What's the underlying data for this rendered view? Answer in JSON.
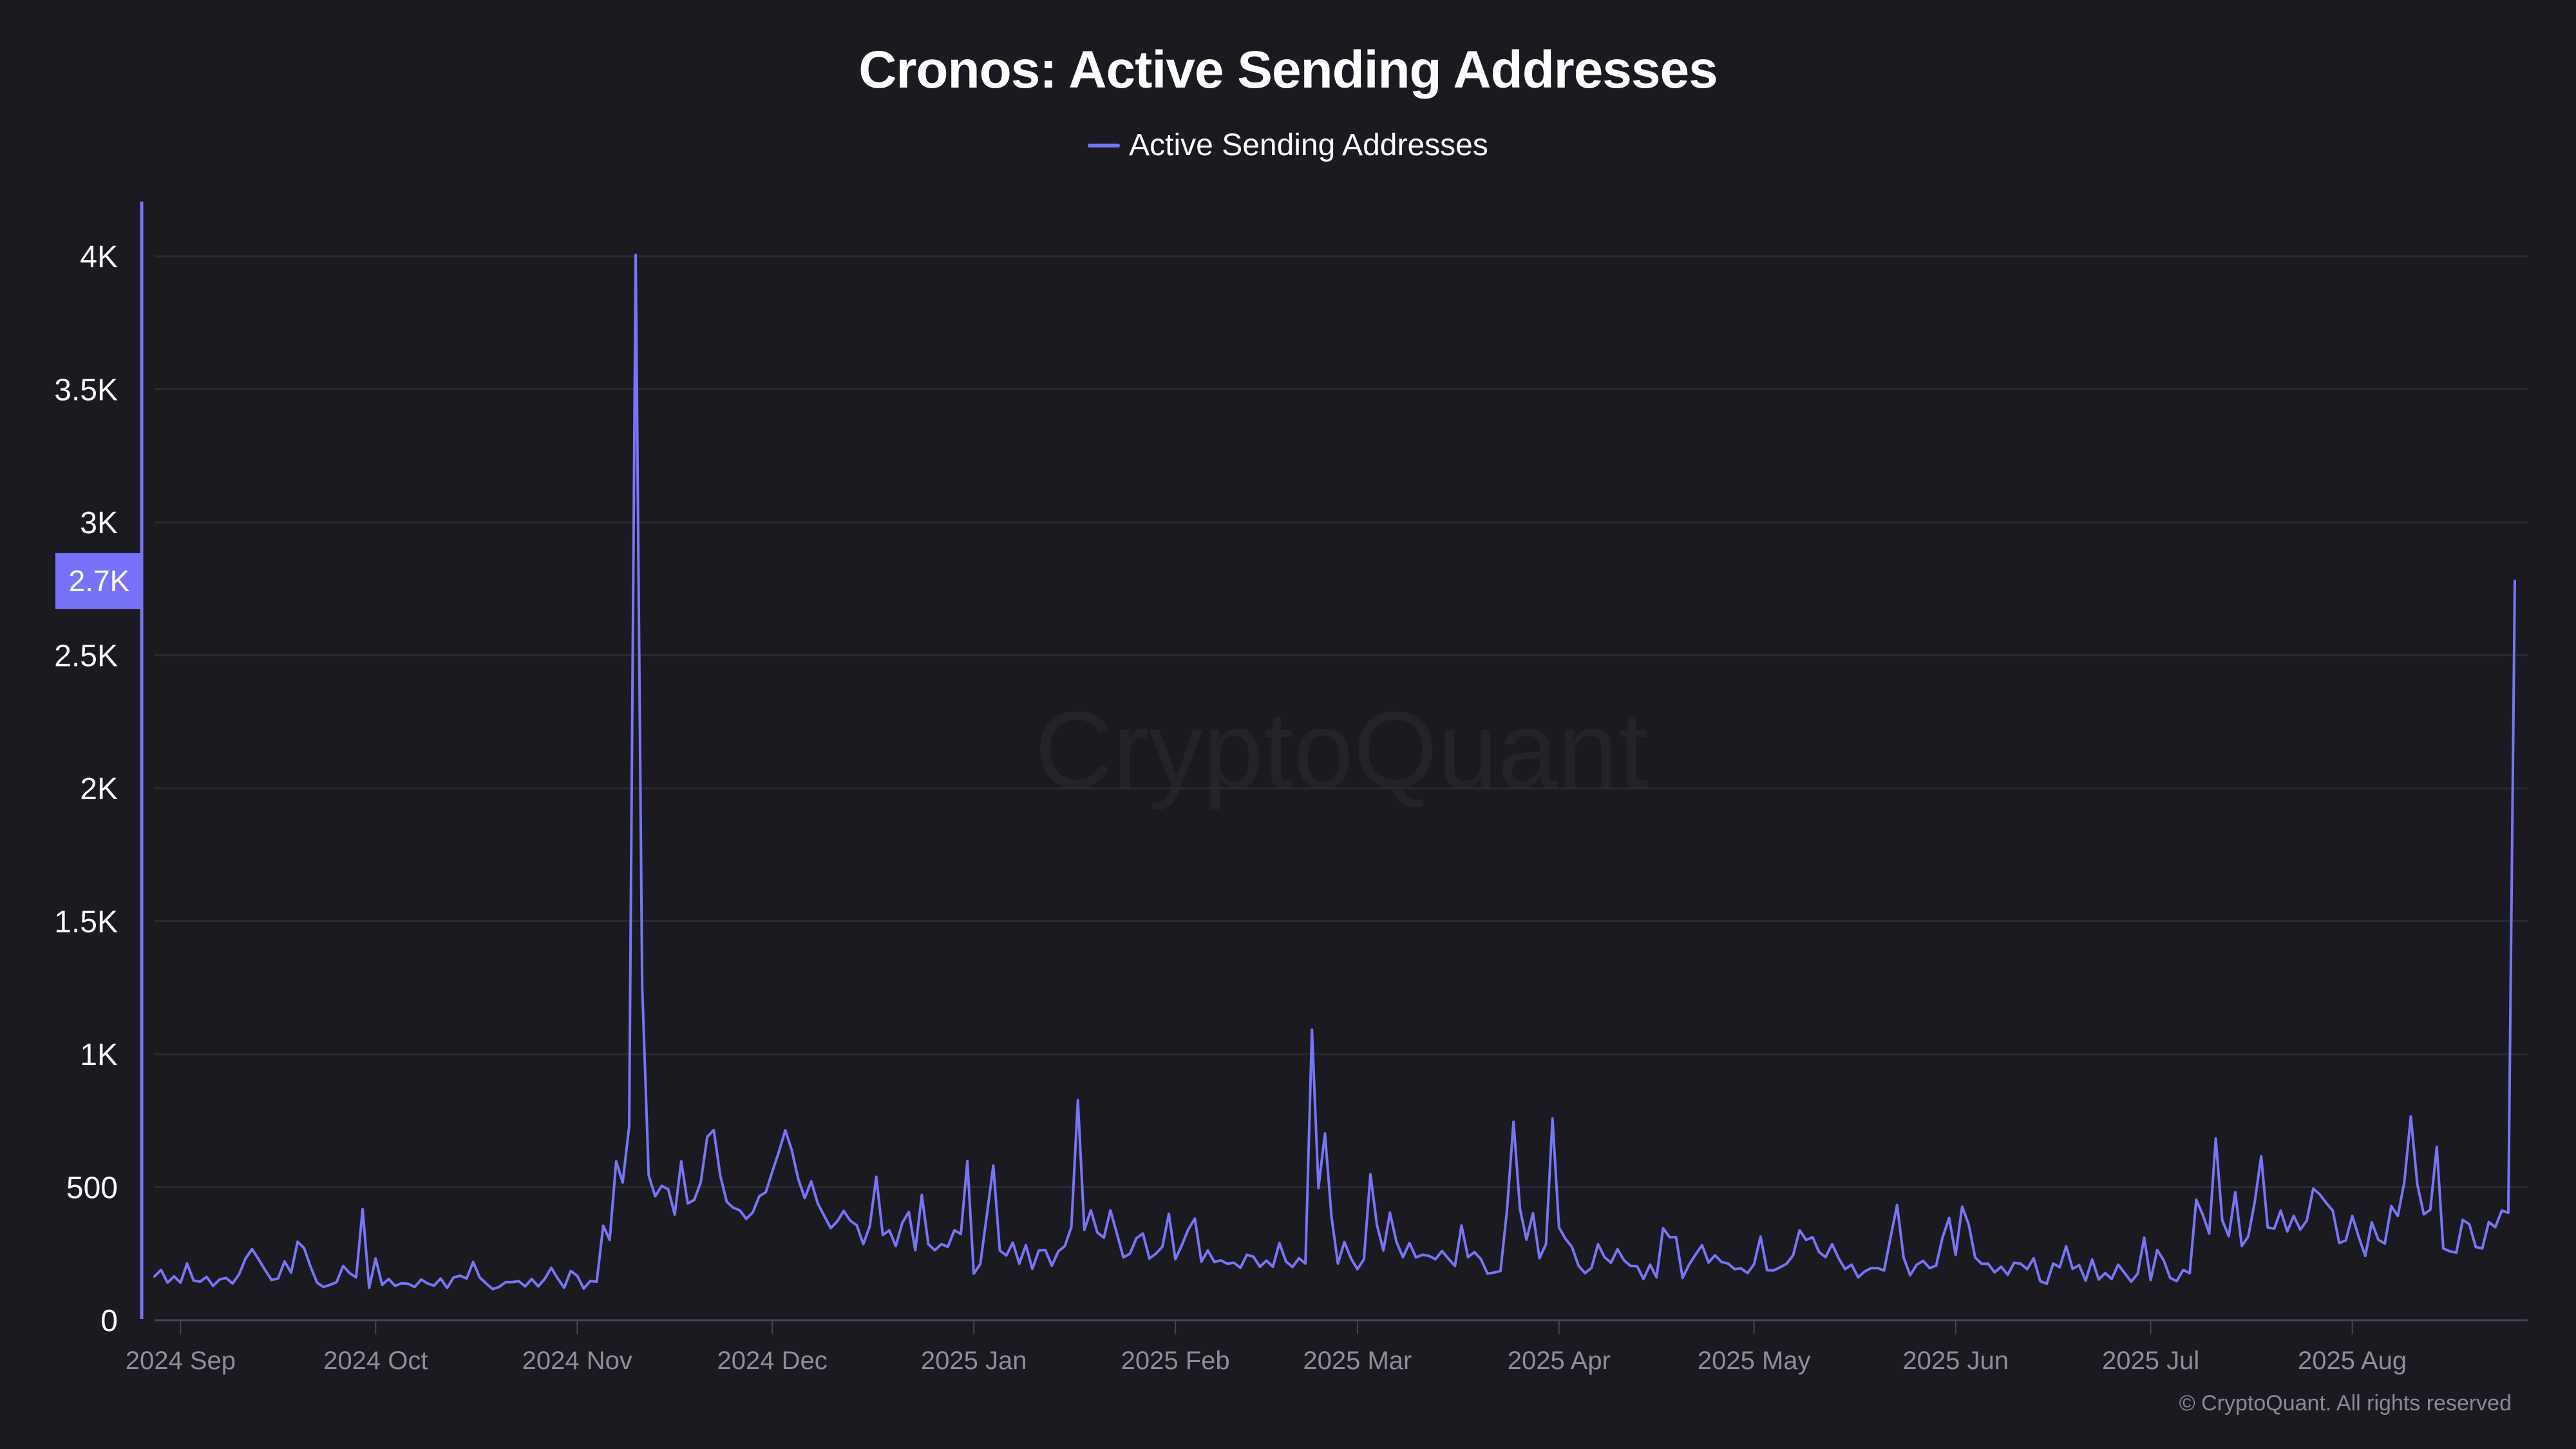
{
  "chart_data": {
    "type": "line",
    "title": "Cronos: Active Sending Addresses",
    "xlabel": "",
    "ylabel": "",
    "legend": {
      "position": "top-center",
      "entries": [
        "Active Sending Addresses"
      ]
    },
    "grid": true,
    "ylim": [
      0,
      4200
    ],
    "y_ticks": [
      0,
      500,
      1000,
      1500,
      2000,
      2500,
      3000,
      3500,
      4000
    ],
    "y_tick_labels": [
      "0",
      "500",
      "1K",
      "1.5K",
      "2K",
      "2.5K",
      "3K",
      "3.5K",
      "4K"
    ],
    "x_start_date": "2024-08-28",
    "x_end_date": "2025-08-26",
    "x_ticks": [
      {
        "date": "2024-09-01",
        "label": "2024 Sep"
      },
      {
        "date": "2024-10-01",
        "label": "2024 Oct"
      },
      {
        "date": "2024-11-01",
        "label": "2024 Nov"
      },
      {
        "date": "2024-12-01",
        "label": "2024 Dec"
      },
      {
        "date": "2025-01-01",
        "label": "2025 Jan"
      },
      {
        "date": "2025-02-01",
        "label": "2025 Feb"
      },
      {
        "date": "2025-03-01",
        "label": "2025 Mar"
      },
      {
        "date": "2025-04-01",
        "label": "2025 Apr"
      },
      {
        "date": "2025-05-01",
        "label": "2025 May"
      },
      {
        "date": "2025-06-01",
        "label": "2025 Jun"
      },
      {
        "date": "2025-07-01",
        "label": "2025 Jul"
      },
      {
        "date": "2025-08-01",
        "label": "2025 Aug"
      }
    ],
    "current_value_label": "2.7K",
    "series": [
      {
        "name": "Active Sending Addresses",
        "color": "#7775f6",
        "values": [
          165,
          189,
          141,
          165,
          141,
          213,
          149,
          145,
          163,
          129,
          153,
          159,
          138,
          173,
          232,
          267,
          229,
          189,
          151,
          157,
          221,
          179,
          295,
          271,
          201,
          141,
          125,
          133,
          143,
          204,
          177,
          161,
          417,
          121,
          232,
          133,
          155,
          129,
          139,
          137,
          125,
          153,
          138,
          130,
          157,
          121,
          161,
          167,
          157,
          219,
          161,
          138,
          117,
          125,
          143,
          143,
          147,
          127,
          155,
          127,
          155,
          197,
          157,
          122,
          185,
          167,
          119,
          147,
          145,
          355,
          302,
          597,
          518,
          729,
          4005,
          1255,
          544,
          466,
          505,
          492,
          397,
          597,
          439,
          452,
          518,
          689,
          715,
          544,
          445,
          423,
          413,
          381,
          405,
          466,
          481,
          558,
          632,
          714,
          640,
          531,
          459,
          522,
          439,
          392,
          346,
          372,
          411,
          374,
          357,
          286,
          354,
          539,
          320,
          338,
          279,
          366,
          407,
          263,
          471,
          286,
          263,
          286,
          276,
          338,
          324,
          598,
          175,
          211,
          394,
          581,
          262,
          243,
          292,
          212,
          282,
          193,
          262,
          264,
          205,
          259,
          279,
          350,
          827,
          340,
          413,
          330,
          310,
          413,
          326,
          236,
          250,
          308,
          326,
          232,
          250,
          276,
          400,
          229,
          282,
          342,
          382,
          220,
          262,
          219,
          225,
          212,
          216,
          197,
          246,
          239,
          201,
          224,
          201,
          290,
          221,
          200,
          233,
          213,
          1092,
          497,
          702,
          390,
          213,
          294,
          233,
          192,
          229,
          549,
          358,
          262,
          404,
          294,
          237,
          290,
          236,
          246,
          242,
          229,
          260,
          231,
          204,
          356,
          237,
          256,
          229,
          175,
          179,
          185,
          415,
          746,
          419,
          303,
          402,
          233,
          286,
          758,
          349,
          306,
          275,
          205,
          177,
          197,
          286,
          237,
          216,
          267,
          225,
          204,
          203,
          155,
          209,
          161,
          346,
          312,
          312,
          159,
          209,
          247,
          282,
          217,
          244,
          219,
          213,
          192,
          195,
          177,
          211,
          314,
          188,
          187,
          199,
          212,
          244,
          338,
          302,
          312,
          256,
          237,
          286,
          233,
          192,
          209,
          161,
          183,
          196,
          196,
          187,
          312,
          433,
          236,
          169,
          208,
          223,
          196,
          205,
          312,
          384,
          246,
          427,
          361,
          236,
          212,
          212,
          180,
          201,
          171,
          216,
          212,
          192,
          233,
          147,
          137,
          213,
          199,
          278,
          193,
          207,
          149,
          228,
          153,
          177,
          155,
          209,
          177,
          145,
          175,
          310,
          151,
          264,
          225,
          159,
          147,
          189,
          177,
          453,
          397,
          326,
          683,
          376,
          316,
          481,
          279,
          314,
          444,
          617,
          349,
          344,
          412,
          334,
          392,
          341,
          374,
          495,
          473,
          441,
          412,
          290,
          300,
          392,
          312,
          242,
          368,
          303,
          288,
          429,
          392,
          519,
          766,
          511,
          398,
          415,
          652,
          270,
          259,
          254,
          377,
          361,
          275,
          270,
          369,
          350,
          412,
          404,
          2780
        ]
      }
    ]
  },
  "watermark": "CryptoQuant",
  "footer": "© CryptoQuant. All rights reserved",
  "colors": {
    "background": "#1b1a20",
    "line": "#7775f6",
    "badge": "#7772f8",
    "grid": "#2a2a31",
    "axis_text": "#ffffff",
    "x_text": "#8e8e9a"
  }
}
